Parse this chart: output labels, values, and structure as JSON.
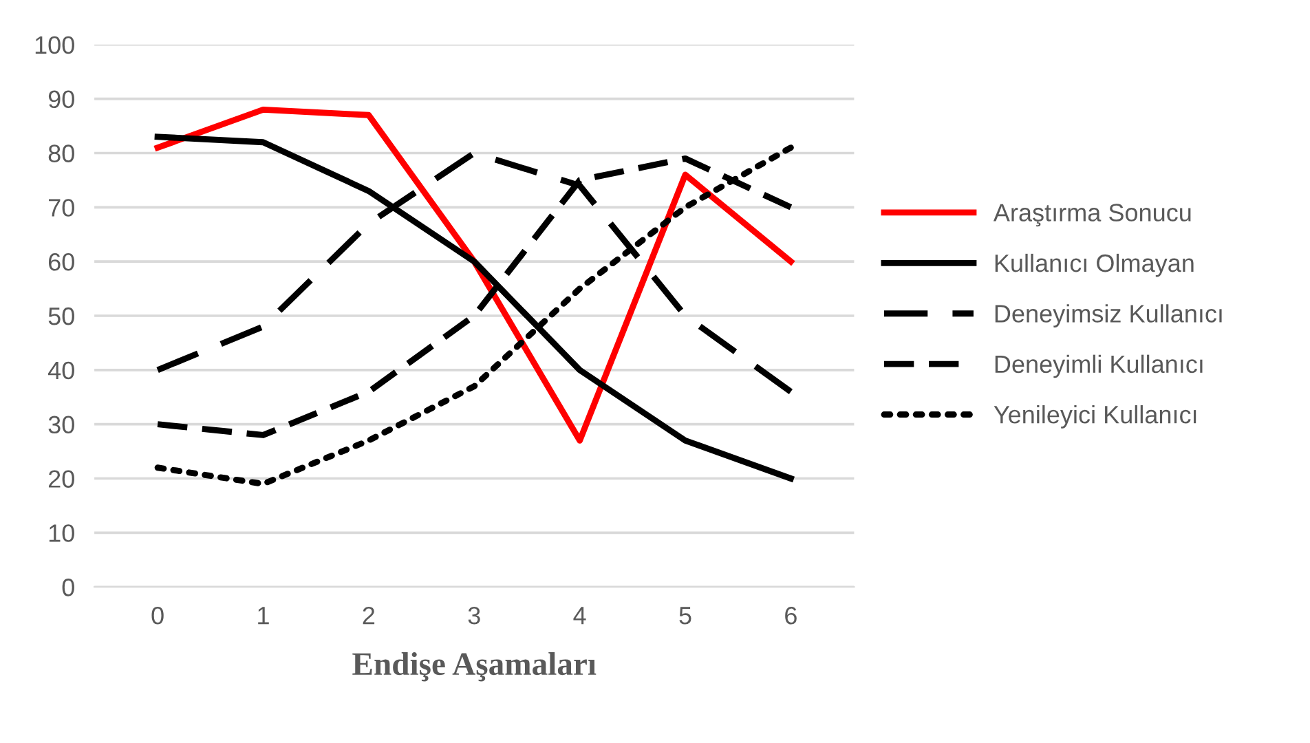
{
  "chart_data": {
    "type": "line",
    "xlabel": "Endişe Aşamaları",
    "categories": [
      "0",
      "1",
      "2",
      "3",
      "4",
      "5",
      "6"
    ],
    "ylim": [
      0,
      100
    ],
    "yticks": [
      0,
      10,
      20,
      30,
      40,
      50,
      60,
      70,
      80,
      90,
      100
    ],
    "grid": "y",
    "legend": "right",
    "marker": "none",
    "series": [
      {
        "name": "Araştırma Sonucu",
        "color": "#ff0000",
        "line_style": "solid",
        "values": [
          81,
          88,
          87,
          60,
          27,
          76,
          60
        ]
      },
      {
        "name": "Kullanıcı Olmayan",
        "color": "#000000",
        "line_style": "solid",
        "values": [
          83,
          82,
          73,
          60,
          40,
          27,
          20
        ]
      },
      {
        "name": "Deneyimsiz Kullanıcı",
        "color": "#000000",
        "line_style": "longdash",
        "values": [
          40,
          48,
          67,
          80,
          74,
          50,
          36
        ]
      },
      {
        "name": "Deneyimli Kullanıcı",
        "color": "#000000",
        "line_style": "dashed",
        "values": [
          30,
          28,
          36,
          50,
          75,
          79,
          70
        ]
      },
      {
        "name": "Yenileyici Kullanıcı",
        "color": "#000000",
        "line_style": "dotted",
        "values": [
          22,
          19,
          27,
          37,
          55,
          70,
          81
        ]
      }
    ]
  }
}
